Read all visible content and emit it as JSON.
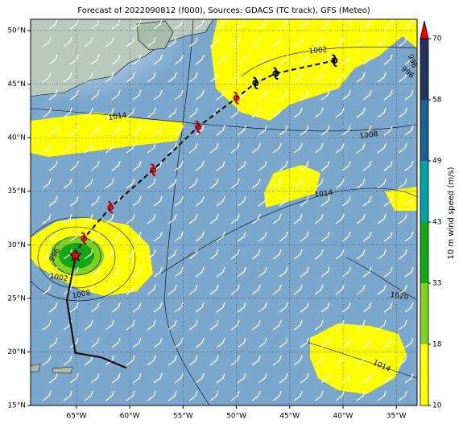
{
  "chart_data": {
    "type": "track_map",
    "title": "Forecast of 2022090812 (f000), Sources: GDACS (TC track), GFS (Meteo)",
    "xlim": [
      -69.3,
      -33.05
    ],
    "ylim": [
      15,
      51.05
    ],
    "xticks": [
      {
        "value": -65,
        "label": "65°W"
      },
      {
        "value": -60,
        "label": "60°W"
      },
      {
        "value": -55,
        "label": "55°W"
      },
      {
        "value": -50,
        "label": "50°W"
      },
      {
        "value": -45,
        "label": "45°W"
      },
      {
        "value": -40,
        "label": "40°W"
      },
      {
        "value": -35,
        "label": "35°W"
      }
    ],
    "yticks": [
      {
        "value": 15,
        "label": "15°N"
      },
      {
        "value": 20,
        "label": "20°N"
      },
      {
        "value": 25,
        "label": "25°N"
      },
      {
        "value": 30,
        "label": "30°N"
      },
      {
        "value": 35,
        "label": "35°N"
      },
      {
        "value": 40,
        "label": "40°N"
      },
      {
        "value": 45,
        "label": "45°N"
      },
      {
        "value": 50,
        "label": "50°N"
      }
    ],
    "grid": true,
    "forecast_track": {
      "lon": [
        -65.1,
        -64.3,
        -61.8,
        -57.8,
        -53.6,
        -50.0,
        -48.2,
        -46.3,
        -40.8
      ],
      "lat": [
        29.0,
        30.6,
        33.5,
        37.0,
        41.0,
        43.7,
        45.1,
        46.0,
        47.2
      ],
      "color": "#000000"
    },
    "past_track": {
      "lon": [
        -65.1,
        -65.9,
        -65.1,
        -62.7,
        -60.3
      ],
      "lat": [
        28.8,
        24.8,
        19.9,
        19.5,
        18.5
      ],
      "color": "#000000"
    },
    "contour_labels": [
      1014,
      1002,
      1008,
      1014,
      1020,
      1014,
      996,
      996,
      996,
      1002,
      1008
    ],
    "colorbar": {
      "label": "10 m wind speed (m/s)",
      "ticks": [
        10,
        18,
        33,
        43,
        49,
        58,
        70
      ],
      "colors": [
        "#ffff00",
        "#7fd320",
        "#14a814",
        "#00a3a3",
        "#1f5f8f",
        "#22345e"
      ],
      "extend_color": "#ee0000"
    }
  }
}
